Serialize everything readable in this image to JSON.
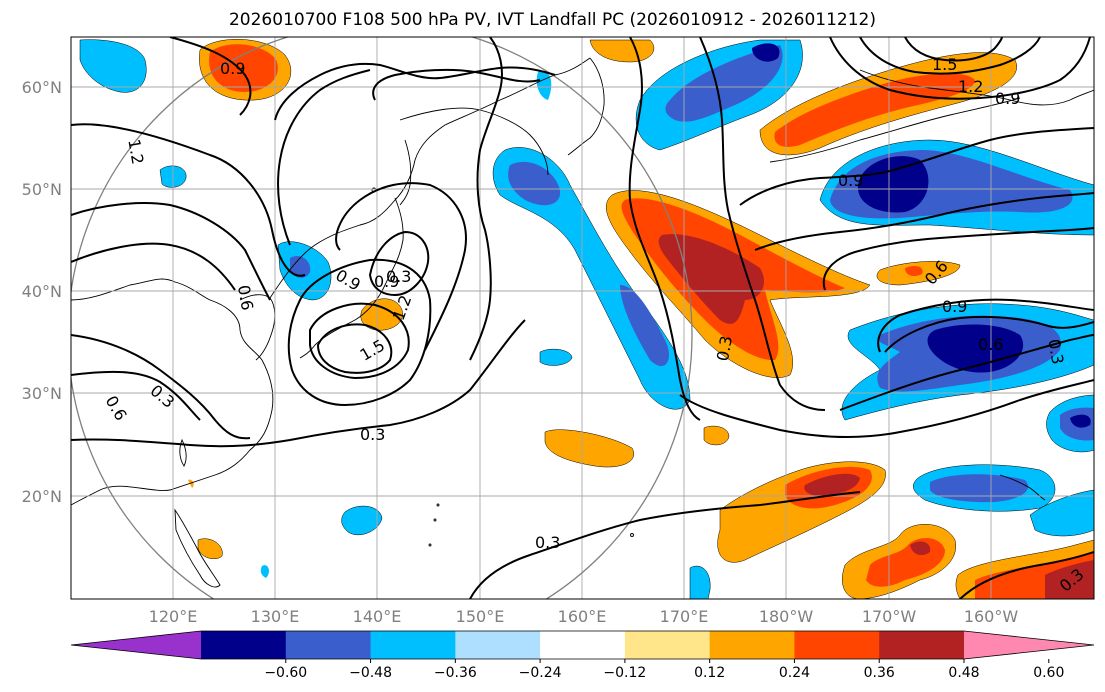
{
  "title": "2026010700 F108 500 hPa PV, IVT Landfall PC (2026010912 - 2026011212)",
  "lat_labels": [
    "60°N",
    "50°N",
    "40°N",
    "30°N",
    "20°N"
  ],
  "lon_labels": [
    "120°E",
    "130°E",
    "140°E",
    "150°E",
    "160°E",
    "170°E",
    "180°W",
    "170°W",
    "160°W"
  ],
  "colorbar": {
    "colors": [
      "#9932cc",
      "#00008b",
      "#3a5fcd",
      "#00bfff",
      "#afdfff",
      "#ffffff",
      "#ffe68a",
      "#ffa500",
      "#ff4500",
      "#b22222",
      "#ff88b0"
    ],
    "tick_labels": [
      "−0.60",
      "−0.48",
      "−0.36",
      "−0.24",
      "−0.12",
      "0.12",
      "0.24",
      "0.36",
      "0.48",
      "0.60"
    ]
  },
  "contour_labels": [
    "0.9",
    "1.2",
    "1.5",
    "1.2",
    "0.9",
    "0.9",
    "0.6",
    "0.9",
    "0.6",
    "0.3",
    "0.3",
    "0.3",
    "0.3",
    "0.3",
    "0.6",
    "0.9",
    "0.9",
    "0.6",
    "0.3",
    "1.5",
    "1.2",
    "0.3"
  ]
}
